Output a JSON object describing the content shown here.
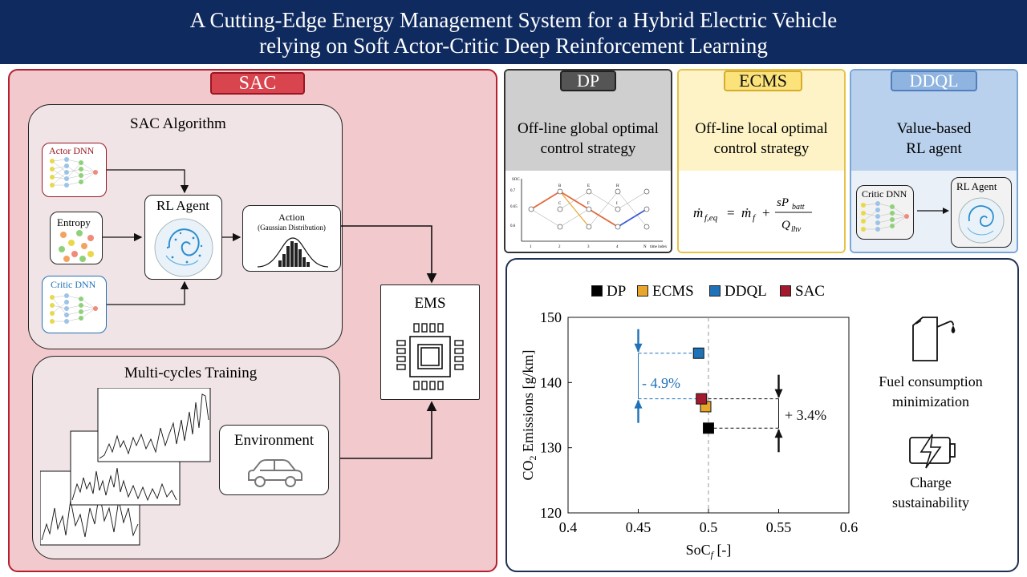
{
  "title": {
    "line1": "A Cutting-Edge Energy Management System for a Hybrid Electric Vehicle",
    "line2": "relying on Soft Actor-Critic Deep Reinforcement Learning"
  },
  "sac": {
    "tag": "SAC",
    "algorithm": {
      "title": "SAC Algorithm",
      "actor_dnn": "Actor DNN",
      "entropy": "Entropy",
      "critic_dnn": "Critic DNN",
      "rl_agent": "RL Agent",
      "action": "Action",
      "action_sub": "(Gaussian Distribution)"
    },
    "training": {
      "title": "Multi-cycles Training",
      "environment": "Environment"
    },
    "ems": "EMS"
  },
  "methods": {
    "dp": {
      "tag": "DP",
      "line1": "Off-line global optimal",
      "line2": "control strategy",
      "graph": {
        "y_ticks": [
          "0.7",
          "0.65",
          "0.6"
        ],
        "x_ticks": [
          "1",
          "2",
          "3",
          "4",
          "N"
        ],
        "ylabel": "SOC",
        "xlabel": "time index",
        "nodes": [
          "B",
          "C",
          "E",
          "F",
          "H",
          "I"
        ]
      }
    },
    "ecms": {
      "tag": "ECMS",
      "line1": "Off-line local optimal",
      "line2": "control strategy"
    },
    "ddql": {
      "tag": "DDQL",
      "line1": "Value-based",
      "line2": "RL agent",
      "critic_dnn": "Critic DNN",
      "rl_agent": "RL Agent"
    }
  },
  "results": {
    "legend": [
      {
        "name": "DP",
        "color": "#000000"
      },
      {
        "name": "ECMS",
        "color": "#e8a72c"
      },
      {
        "name": "DDQL",
        "color": "#1f72b8"
      },
      {
        "name": "SAC",
        "color": "#a3192d"
      }
    ],
    "fuel_label_1": "Fuel consumption",
    "fuel_label_2": "minimization",
    "charge_label_1": "Charge",
    "charge_label_2": "sustainability"
  },
  "chart_data": {
    "type": "scatter",
    "xlabel": "SoCf [-]",
    "ylabel": "CO2 Emissions [g/km]",
    "xlim": [
      0.4,
      0.6
    ],
    "ylim": [
      120,
      150
    ],
    "x_ticks": [
      0.4,
      0.45,
      0.5,
      0.55,
      0.6
    ],
    "y_ticks": [
      120,
      130,
      140,
      150
    ],
    "grid": true,
    "series": [
      {
        "name": "DP",
        "x": [
          0.5
        ],
        "y": [
          133
        ]
      },
      {
        "name": "ECMS",
        "x": [
          0.498
        ],
        "y": [
          136.3
        ]
      },
      {
        "name": "DDQL",
        "x": [
          0.493
        ],
        "y": [
          144.5
        ]
      },
      {
        "name": "SAC",
        "x": [
          0.495
        ],
        "y": [
          137.5
        ]
      }
    ],
    "annotations": [
      {
        "text": "- 4.9%",
        "x": 0.45,
        "from": 144.5,
        "to": 137.5
      },
      {
        "text": "+ 3.4%",
        "x": 0.55,
        "from": 137.5,
        "to": 133
      }
    ]
  }
}
